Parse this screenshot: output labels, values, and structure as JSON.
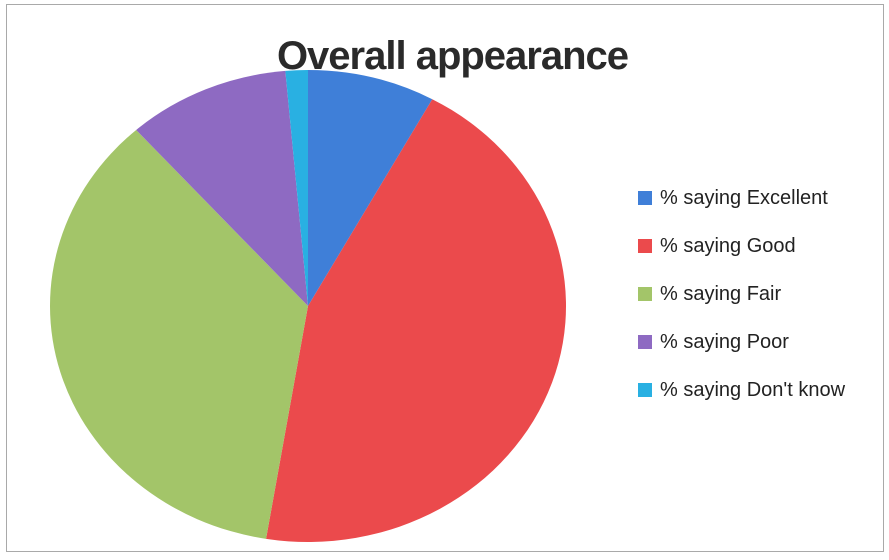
{
  "chart_data": {
    "type": "pie",
    "title": "Overall appearance",
    "categories": [
      "% saying Excellent",
      "% saying Good",
      "% saying Fair",
      "% saying Poor",
      "% saying Don't know"
    ],
    "values": [
      8.0,
      44.6,
      35.8,
      10.2,
      1.4
    ],
    "colors": [
      "#3f7fd8",
      "#eb4a4c",
      "#a3c569",
      "#8e6ac2",
      "#29b0e2"
    ],
    "legend_position": "right"
  }
}
